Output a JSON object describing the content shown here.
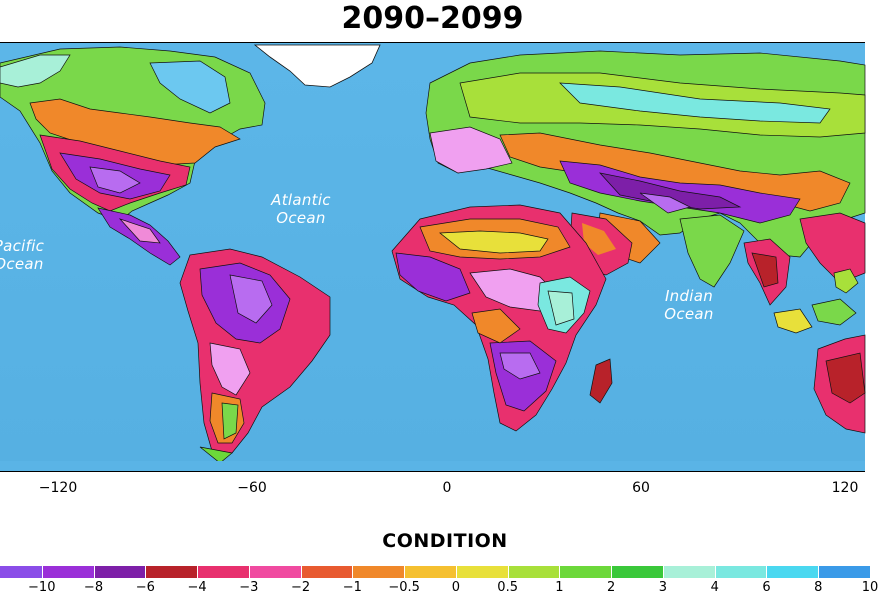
{
  "title": "2090–2099",
  "ocean_labels": {
    "pacific": "Pacific\nOcean",
    "atlantic": "Atlantic\nOcean",
    "indian": "Indian\nOcean"
  },
  "longitude_labels": [
    "−120",
    "−60",
    "0",
    "60",
    "120"
  ],
  "legend": {
    "title": "CONDITION",
    "ticks": [
      "−10",
      "−8",
      "−6",
      "−4",
      "−3",
      "−2",
      "−1",
      "−0.5",
      "0",
      "0.5",
      "1",
      "2",
      "3",
      "4",
      "6",
      "8",
      "10"
    ],
    "colors": [
      "#8a4de8",
      "#9a2fd8",
      "#7d1fa8",
      "#b8222a",
      "#e8306e",
      "#f04aa0",
      "#e85a30",
      "#f0882a",
      "#f5c030",
      "#e8e03a",
      "#a8e03a",
      "#6cd83a",
      "#3ac83a",
      "#a8f0d8",
      "#7ae8e0",
      "#4ad8f0",
      "#3a9ae8"
    ]
  },
  "colors": {
    "ocean": "#5ab4e6",
    "land_outline": "#111111",
    "ice": "#ffffff"
  }
}
